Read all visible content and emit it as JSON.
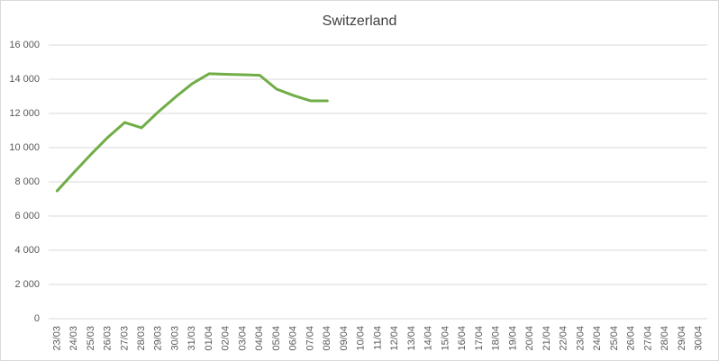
{
  "chart_data": {
    "type": "line",
    "title": "Switzerland",
    "categories": [
      "23/03",
      "24/03",
      "25/03",
      "26/03",
      "27/03",
      "28/03",
      "29/03",
      "30/03",
      "31/03",
      "01/04",
      "02/04",
      "03/04",
      "04/04",
      "05/04",
      "06/04",
      "07/04",
      "08/04",
      "09/04",
      "10/04",
      "11/04",
      "12/04",
      "13/04",
      "14/04",
      "15/04",
      "16/04",
      "17/04",
      "18/04",
      "19/04",
      "20/04",
      "21/04",
      "22/04",
      "23/04",
      "24/04",
      "25/04",
      "26/04",
      "27/04",
      "28/04",
      "29/04",
      "30/04"
    ],
    "series": [
      {
        "name": "Switzerland",
        "color": "#70ad47",
        "values": [
          7470,
          8550,
          9600,
          10600,
          11470,
          11160,
          12100,
          12950,
          13740,
          14320,
          14290,
          14260,
          14230,
          13420,
          13050,
          12740,
          12740,
          null,
          null,
          null,
          null,
          null,
          null,
          null,
          null,
          null,
          null,
          null,
          null,
          null,
          null,
          null,
          null,
          null,
          null,
          null,
          null,
          null,
          null
        ]
      }
    ],
    "ylim": [
      0,
      16000
    ],
    "yticks": [
      0,
      {
        "value": 2000,
        "label": "2 000"
      },
      {
        "value": 4000,
        "label": "4 000"
      },
      {
        "value": 6000,
        "label": "6 000"
      },
      {
        "value": 8000,
        "label": "8 000"
      },
      {
        "value": 10000,
        "label": "10 000"
      },
      {
        "value": 12000,
        "label": "12 000"
      },
      {
        "value": 14000,
        "label": "14 000"
      },
      {
        "value": 16000,
        "label": "16 000"
      }
    ],
    "grid": true
  }
}
